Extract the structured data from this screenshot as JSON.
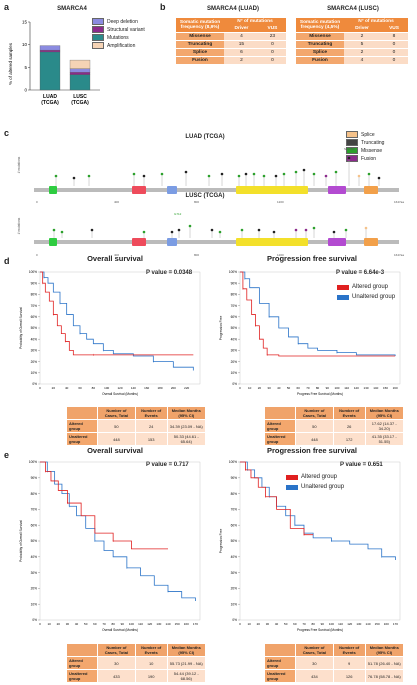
{
  "panels": {
    "a": "a",
    "b": "b",
    "c": "c",
    "d": "d",
    "e": "e"
  },
  "a": {
    "title": "SMARCA4",
    "ylabel": "% of altered samples",
    "legend": [
      {
        "label": "Deep deletion",
        "color": "#8b8be0"
      },
      {
        "label": "Structural variant",
        "color": "#8b2a8b"
      },
      {
        "label": "Mutations",
        "color": "#2a8a8a"
      },
      {
        "label": "Amplification",
        "color": "#f5d3b5"
      }
    ],
    "chart_data": {
      "type": "bar",
      "categories": [
        "LUAD (TCGA)",
        "LUSC (TCGA)"
      ],
      "series": [
        {
          "name": "Mutations",
          "values": [
            8.4,
            3.4
          ]
        },
        {
          "name": "Structural variant",
          "values": [
            0.4,
            0.5
          ]
        },
        {
          "name": "Deep deletion",
          "values": [
            1.0,
            0.8
          ]
        },
        {
          "name": "Amplification",
          "values": [
            0,
            1.9
          ]
        }
      ],
      "ylim": [
        0,
        15
      ],
      "yticks": [
        "0",
        "5",
        "10",
        "15"
      ],
      "ylabel": "% of altered samples"
    },
    "xlabels": [
      {
        "l1": "LUAD",
        "l2": "(TCGA)"
      },
      {
        "l1": "LUSC",
        "l2": "(TCGA)"
      }
    ]
  },
  "b": {
    "luad": {
      "title": "SMARCA4 (LUAD)",
      "h1": "Somatic mutation frequency (8,9%)",
      "h2": "N° of mutations",
      "h3": "Driver",
      "h4": "VUS",
      "rows": [
        {
          "name": "Missense",
          "d": "4",
          "v": "23"
        },
        {
          "name": "Truncating",
          "d": "15",
          "v": "0"
        },
        {
          "name": "Splice",
          "d": "6",
          "v": "0"
        },
        {
          "name": "Fusion",
          "d": "2",
          "v": "0"
        }
      ]
    },
    "lusc": {
      "title": "SMARCA4 (LUSC)",
      "h1": "Somatic mutation frequency (4,5%)",
      "h2": "N° of mutations",
      "h3": "Driver",
      "h4": "VUS",
      "rows": [
        {
          "name": "Missense",
          "d": "2",
          "v": "8"
        },
        {
          "name": "Truncating",
          "d": "5",
          "v": "0"
        },
        {
          "name": "Splice",
          "d": "2",
          "v": "0"
        },
        {
          "name": "Fusion",
          "d": "4",
          "v": "0"
        }
      ]
    }
  },
  "c": {
    "luad_title": "LUAD (TCGA)",
    "lusc_title": "LUSC (TCGA)",
    "legend": [
      {
        "label": "Splice",
        "color": "#f5c28a"
      },
      {
        "label": "Truncating",
        "color": "#444444"
      },
      {
        "label": "Missense",
        "color": "#2ca02c"
      },
      {
        "label": "Fusion",
        "color": "#8b2a8b"
      }
    ],
    "luad_tick_mid": "S1125fs",
    "lusc_tick_mid": "G712",
    "axis": {
      "t0": "0",
      "t1": "400",
      "t2": "800",
      "t3": "1200",
      "t4": "1647aa"
    },
    "ylabel": "# mutations"
  },
  "d": {
    "os": {
      "title": "Overall survival",
      "p": "P value = 0.0348",
      "xlabel": "Overall Survival (Months)",
      "ylabel": "Probability of Overall Survival",
      "xticks": [
        "0",
        "20",
        "40",
        "60",
        "80",
        "100",
        "120",
        "140",
        "160",
        "180",
        "200",
        "220"
      ]
    },
    "pfs": {
      "title": "Progression free survival",
      "p": "P value = 6.64e-3",
      "xlabel": "Progress Free Survival (Months)",
      "ylabel": "Progression Free",
      "xticks": [
        "0",
        "10",
        "20",
        "30",
        "40",
        "50",
        "60",
        "70",
        "80",
        "90",
        "100",
        "110",
        "120",
        "130",
        "140",
        "150",
        "160"
      ]
    },
    "legend": {
      "altered": "Altered group",
      "unaltered": "Unaltered group"
    },
    "yticks": [
      "100%",
      "90%",
      "80%",
      "70%",
      "60%",
      "50%",
      "40%",
      "30%",
      "20%",
      "10%",
      "0%"
    ],
    "table_os": {
      "h1": "Number of Cases, Total",
      "h2": "Number of Events",
      "h3": "Median Months (95% CI)",
      "rows": [
        {
          "name": "Altered group",
          "a": "50",
          "b": "24",
          "c": "34.39 (23.09 - NA)"
        },
        {
          "name": "Unaltered group",
          "a": "448",
          "b": "153",
          "c": "50.33 (44.61 - 65.64)"
        }
      ]
    },
    "table_pfs": {
      "h1": "Number of Cases, Total",
      "h2": "Number of Events",
      "h3": "Median Months (95% CI)",
      "rows": [
        {
          "name": "Altered group",
          "a": "50",
          "b": "26",
          "c": "17.62 (14.37 - 34.20)"
        },
        {
          "name": "Unaltered group",
          "a": "448",
          "b": "172",
          "c": "41.35 (33.17 - 51.55)"
        }
      ]
    }
  },
  "e": {
    "os": {
      "title": "Overall survival",
      "p": "P value = 0.717",
      "xlabel": "Overall Survival (Months)",
      "ylabel": "Probability of Overall Survival",
      "xticks": [
        "0",
        "10",
        "20",
        "30",
        "40",
        "50",
        "60",
        "70",
        "80",
        "90",
        "100",
        "110",
        "120",
        "130",
        "140",
        "150",
        "160",
        "170"
      ]
    },
    "pfs": {
      "title": "Progression free survival",
      "p": "P value = 0.651",
      "xlabel": "Progress Free Survival (Months)",
      "ylabel": "Progression Free",
      "xticks": [
        "0",
        "10",
        "20",
        "30",
        "40",
        "50",
        "60",
        "70",
        "80",
        "90",
        "100",
        "110",
        "120",
        "130",
        "140",
        "150",
        "160",
        "170"
      ]
    },
    "legend": {
      "altered": "Altered group",
      "unaltered": "Unaltered group"
    },
    "yticks": [
      "100%",
      "90%",
      "80%",
      "70%",
      "60%",
      "50%",
      "40%",
      "30%",
      "20%",
      "10%",
      "0%"
    ],
    "table_os": {
      "h1": "Number of Cases, Total",
      "h2": "Number of Events",
      "h3": "Median Months (95% CI)",
      "rows": [
        {
          "name": "Altered group",
          "a": "30",
          "b": "10",
          "c": "55.73 (21.99 - NA)"
        },
        {
          "name": "Unaltered group",
          "a": "433",
          "b": "190",
          "c": "54.44 (39.12 - 68.56)"
        }
      ]
    },
    "table_pfs": {
      "h1": "Number of Cases, Total",
      "h2": "Number of Events",
      "h3": "Median Months (95% CI)",
      "rows": [
        {
          "name": "Altered group",
          "a": "30",
          "b": "9",
          "c": "51.78 (26.40 - NA)"
        },
        {
          "name": "Unaltered group",
          "a": "434",
          "b": "126",
          "c": "76.78 (58.78 - NA)"
        }
      ]
    }
  },
  "colors": {
    "altered": "#e02020",
    "unaltered": "#2a73c8",
    "orange": "#ef8a3c"
  }
}
